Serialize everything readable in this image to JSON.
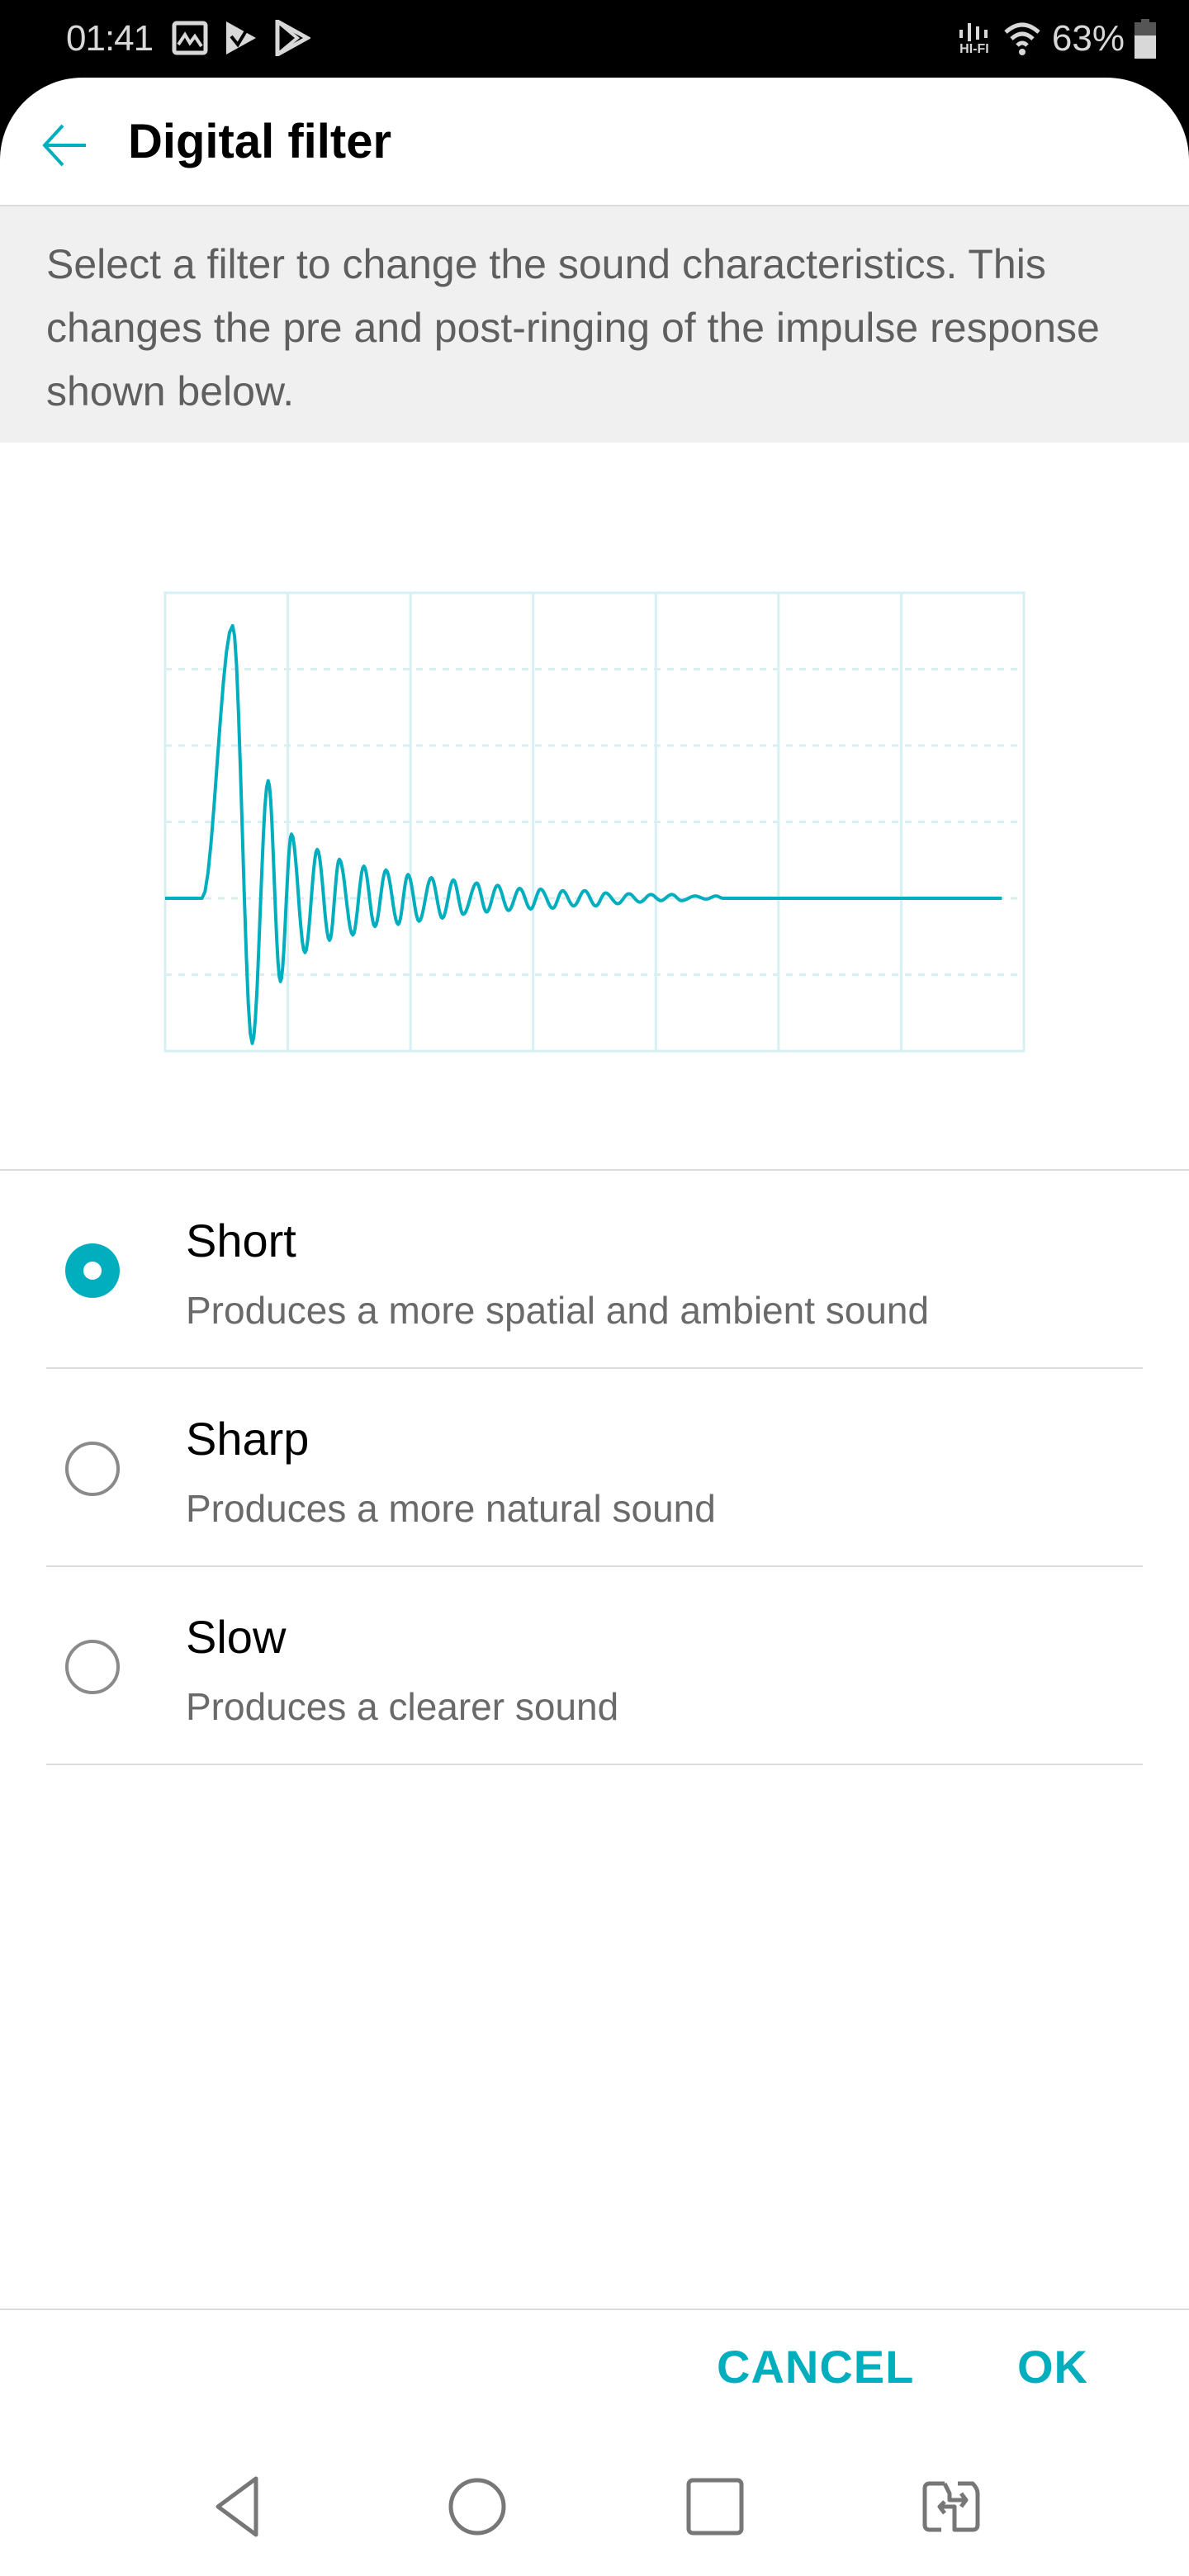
{
  "status_bar": {
    "time": "01:41",
    "notification_icons": [
      "gallery-icon",
      "play-movies-icon",
      "play-store-icon"
    ],
    "hifi_label": "HI-FI",
    "battery": "63%"
  },
  "header": {
    "back_icon": "arrow-left-icon",
    "title": "Digital filter"
  },
  "description": "Select a filter to change the sound characteristics. This changes the pre and post-ringing of the impulse response shown below.",
  "chart_data": {
    "type": "line",
    "title": "",
    "xlabel": "",
    "ylabel": "",
    "xlim": [
      0,
      7
    ],
    "ylim": [
      -2,
      4
    ],
    "grid": {
      "vertical": "solid",
      "horizontal": "dashed"
    },
    "color": "#00aebd",
    "grid_color": "#d6f0f4",
    "x": [
      0,
      0.3,
      0.55,
      0.71,
      0.84,
      0.94,
      1.03,
      1.14,
      1.24,
      1.34,
      1.42,
      1.53,
      1.62,
      1.71,
      1.8,
      1.9,
      1.98,
      2.07,
      2.17,
      2.26,
      2.35,
      2.43,
      2.54,
      2.62,
      2.71,
      2.8,
      2.89,
      2.98,
      3.06,
      3.16,
      3.24,
      3.33,
      3.42,
      3.51,
      3.59,
      3.69,
      3.78,
      3.87,
      3.96,
      4.04,
      4.13,
      4.21,
      4.32,
      4.41,
      4.49,
      4.55,
      6.82
    ],
    "y": [
      0,
      0,
      3.57,
      -1.9,
      1.54,
      -1.09,
      0.84,
      -0.71,
      0.64,
      -0.55,
      0.51,
      -0.48,
      0.42,
      -0.37,
      0.37,
      -0.34,
      0.31,
      -0.3,
      0.27,
      -0.26,
      0.24,
      -0.21,
      0.2,
      -0.18,
      0.17,
      -0.16,
      0.13,
      -0.14,
      0.12,
      -0.13,
      0.1,
      -0.1,
      0.1,
      -0.1,
      0.07,
      -0.07,
      0.06,
      -0.05,
      0.05,
      -0.03,
      0.05,
      -0.03,
      0.03,
      -0.01,
      0.03,
      0,
      0
    ]
  },
  "options": [
    {
      "title": "Short",
      "subtitle": "Produces a more spatial and ambient sound",
      "selected": true
    },
    {
      "title": "Sharp",
      "subtitle": "Produces a more natural sound",
      "selected": false
    },
    {
      "title": "Slow",
      "subtitle": "Produces a clearer sound",
      "selected": false
    }
  ],
  "buttons": {
    "cancel": "CANCEL",
    "ok": "OK"
  },
  "accent_color": "#00aebd",
  "nav_bar": [
    "back-icon",
    "home-icon",
    "recents-icon",
    "dual-window-icon"
  ]
}
